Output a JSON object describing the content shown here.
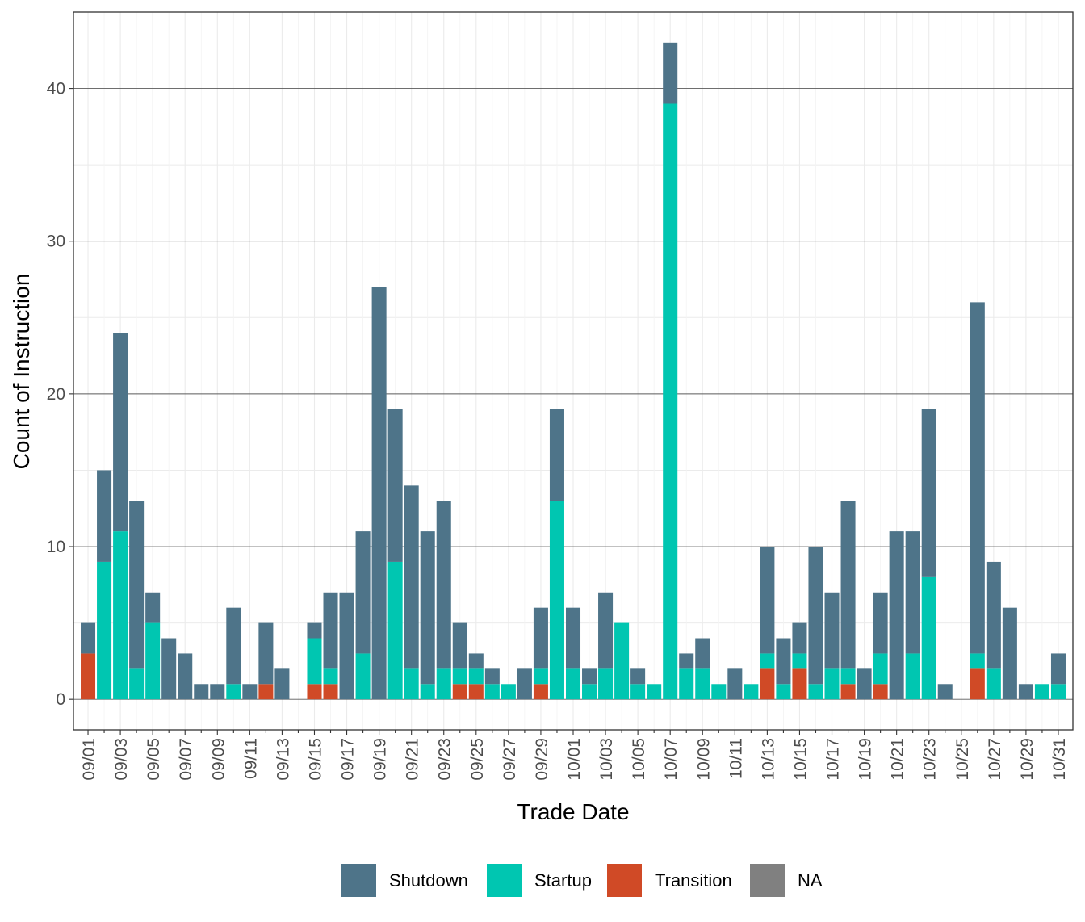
{
  "chart_data": {
    "type": "bar",
    "stacked": true,
    "title": "",
    "xlabel": "Trade Date",
    "ylabel": "Count of Instruction",
    "ylim": [
      -2,
      45
    ],
    "yticks": [
      0,
      10,
      20,
      30,
      40
    ],
    "grid": true,
    "legend_position": "bottom",
    "categories": [
      "09/01",
      "09/02",
      "09/03",
      "09/04",
      "09/05",
      "09/06",
      "09/07",
      "09/08",
      "09/09",
      "09/10",
      "09/11",
      "09/12",
      "09/13",
      "09/14",
      "09/15",
      "09/16",
      "09/17",
      "09/18",
      "09/19",
      "09/20",
      "09/21",
      "09/22",
      "09/23",
      "09/24",
      "09/25",
      "09/26",
      "09/27",
      "09/28",
      "09/29",
      "09/30",
      "10/01",
      "10/02",
      "10/03",
      "10/04",
      "10/05",
      "10/06",
      "10/07",
      "10/08",
      "10/09",
      "10/10",
      "10/11",
      "10/12",
      "10/13",
      "10/14",
      "10/15",
      "10/16",
      "10/17",
      "10/18",
      "10/19",
      "10/20",
      "10/21",
      "10/22",
      "10/23",
      "10/24",
      "10/25",
      "10/26",
      "10/27",
      "10/28",
      "10/29",
      "10/30",
      "10/31"
    ],
    "tick_labels": [
      "09/01",
      "09/03",
      "09/05",
      "09/07",
      "09/09",
      "09/11",
      "09/13",
      "09/15",
      "09/17",
      "09/19",
      "09/21",
      "09/23",
      "09/25",
      "09/27",
      "09/29",
      "10/01",
      "10/03",
      "10/05",
      "10/07",
      "10/09",
      "10/11",
      "10/13",
      "10/15",
      "10/17",
      "10/19",
      "10/21",
      "10/23",
      "10/25",
      "10/27",
      "10/29",
      "10/31"
    ],
    "series": [
      {
        "name": "Transition",
        "color": "#D04A26",
        "values": [
          3,
          0,
          0,
          0,
          0,
          0,
          0,
          0,
          0,
          0,
          0,
          1,
          0,
          0,
          1,
          1,
          0,
          0,
          0,
          0,
          0,
          0,
          0,
          1,
          1,
          0,
          0,
          0,
          1,
          0,
          0,
          0,
          0,
          0,
          0,
          0,
          0,
          0,
          0,
          0,
          0,
          0,
          2,
          0,
          2,
          0,
          0,
          1,
          0,
          1,
          0,
          0,
          0,
          0,
          0,
          2,
          0,
          0,
          0,
          0,
          0
        ]
      },
      {
        "name": "Startup",
        "color": "#00C6B1",
        "values": [
          0,
          9,
          11,
          2,
          5,
          0,
          0,
          0,
          0,
          1,
          0,
          0,
          0,
          0,
          3,
          1,
          0,
          3,
          0,
          9,
          2,
          1,
          2,
          1,
          1,
          1,
          1,
          0,
          1,
          13,
          2,
          1,
          2,
          5,
          1,
          1,
          39,
          2,
          2,
          1,
          0,
          1,
          1,
          1,
          1,
          1,
          2,
          1,
          0,
          2,
          0,
          3,
          8,
          0,
          0,
          1,
          2,
          0,
          0,
          1,
          1
        ]
      },
      {
        "name": "Shutdown",
        "color": "#4E7489",
        "values": [
          2,
          6,
          13,
          11,
          2,
          4,
          3,
          1,
          1,
          5,
          1,
          4,
          2,
          0,
          1,
          5,
          7,
          8,
          27,
          10,
          12,
          10,
          11,
          3,
          1,
          1,
          0,
          2,
          4,
          6,
          4,
          1,
          5,
          0,
          1,
          0,
          4,
          1,
          2,
          0,
          2,
          0,
          7,
          3,
          2,
          9,
          5,
          11,
          2,
          4,
          11,
          8,
          11,
          1,
          0,
          23,
          7,
          6,
          1,
          0,
          2
        ]
      }
    ],
    "legend": [
      {
        "name": "Shutdown",
        "color": "#4E7489"
      },
      {
        "name": "Startup",
        "color": "#00C6B1"
      },
      {
        "name": "Transition",
        "color": "#D04A26"
      },
      {
        "name": "NA",
        "color": "#808080"
      }
    ]
  }
}
